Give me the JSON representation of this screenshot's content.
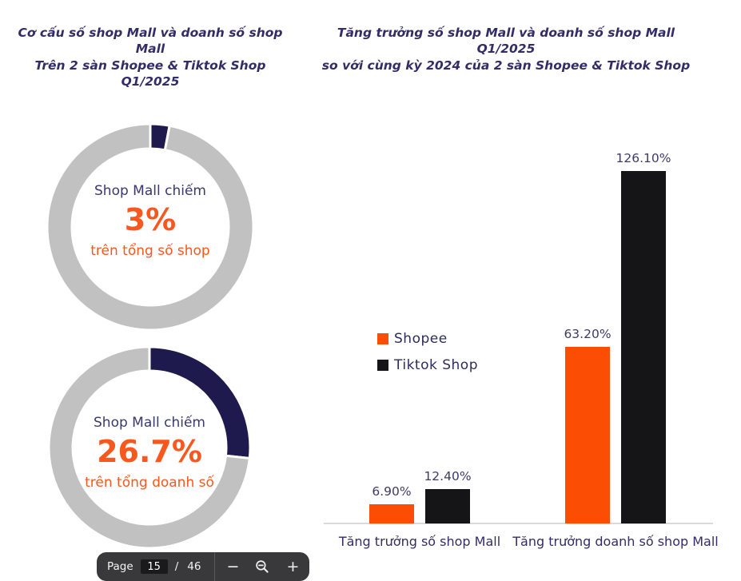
{
  "page": {
    "left_title": "Cơ cấu số shop Mall và doanh số shop Mall\nTrên 2 sàn Shopee & Tiktok Shop Q1/2025",
    "right_title": "Tăng trưởng số shop Mall và doanh số shop Mall Q1/2025\nso với cùng kỳ 2024 của 2 sàn Shopee & Tiktok Shop"
  },
  "colors": {
    "navy_slice": "#1F1A4E",
    "gray_slice": "#C2C1C1",
    "shopee_orange": "#FB4E04",
    "tiktok_black": "#151417",
    "title_text": "#332C66",
    "value_label_text": "#3E3B66",
    "orange_text": "#F8571E",
    "axis_line": "#DADADA",
    "toolbar_bg": "#39393B"
  },
  "chart_data": [
    {
      "type": "pie",
      "subtype": "donut",
      "center_label_top": "Shop Mall chiếm",
      "center_value": "3%",
      "center_label_bottom": "trên tổng số shop",
      "slices": [
        {
          "name": "shop-mall",
          "value": 3,
          "color": "#1F1A4E"
        },
        {
          "name": "other",
          "value": 97,
          "color": "#C2C1C1"
        }
      ]
    },
    {
      "type": "pie",
      "subtype": "donut",
      "center_label_top": "Shop Mall chiếm",
      "center_value": "26.7%",
      "center_label_bottom": "trên tổng doanh số",
      "slices": [
        {
          "name": "shop-mall",
          "value": 26.7,
          "color": "#1F1A4E"
        },
        {
          "name": "other",
          "value": 73.3,
          "color": "#C2C1C1"
        }
      ]
    },
    {
      "type": "bar",
      "categories": [
        "Tăng trưởng số shop Mall",
        "Tăng trưởng doanh số shop Mall"
      ],
      "series": [
        {
          "name": "Shopee",
          "color": "#FB4E04",
          "values": [
            6.9,
            63.2
          ],
          "value_labels": [
            "6.90%",
            "63.20%"
          ]
        },
        {
          "name": "Tiktok Shop",
          "color": "#151417",
          "values": [
            12.4,
            126.1
          ],
          "value_labels": [
            "12.40%",
            "126.10%"
          ]
        }
      ],
      "ylim": [
        0,
        140
      ],
      "grid": false,
      "legend_position": "middle-left",
      "xlabel": "",
      "ylabel": ""
    }
  ],
  "toolbar": {
    "page_label": "Page",
    "current_page": "15",
    "separator": "/",
    "total_pages": "46",
    "zoom_out_glyph": "−",
    "zoom_in_glyph": "+",
    "icons": [
      "zoom-out-minus-icon",
      "magnifier-minus-icon",
      "zoom-in-plus-icon"
    ]
  }
}
